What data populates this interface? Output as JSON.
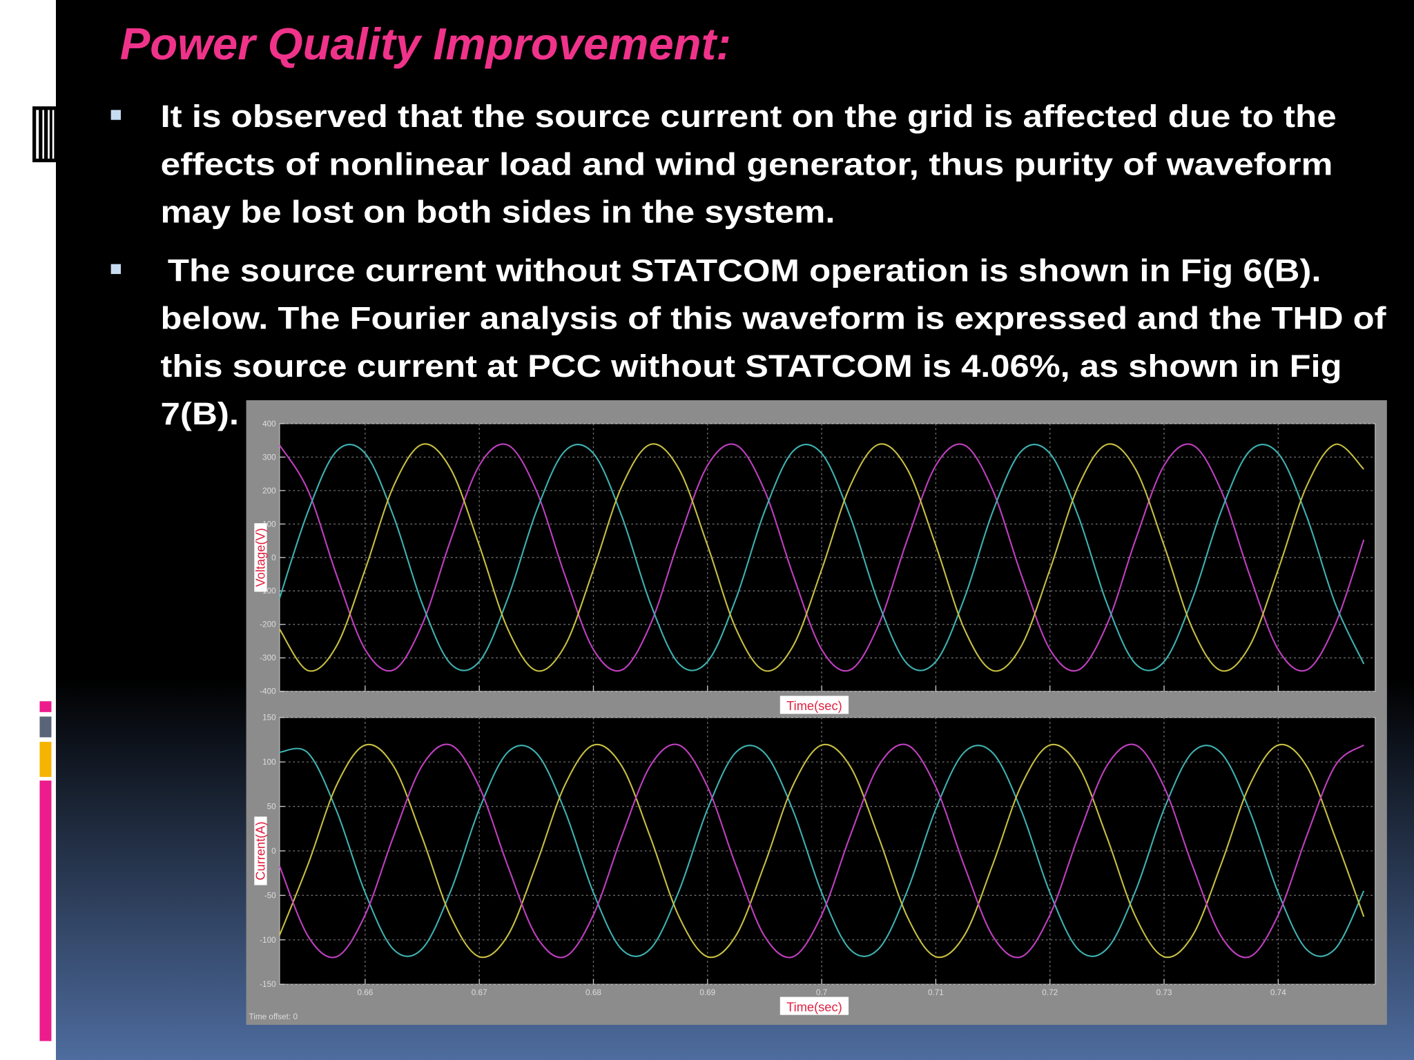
{
  "slide": {
    "title": "Power Quality Improvement:",
    "bullets": [
      {
        "lines": [
          "It is observed that the source current on the grid is affected due to the",
          "effects of nonlinear load and wind generator, thus purity of waveform",
          "may be lost on both sides in the system."
        ]
      },
      {
        "lines": [
          "The source current without STATCOM operation is shown in Fig 6(B).",
          "below. The Fourier analysis of this waveform is expressed and the THD of",
          "this source current at PCC without STATCOM is 4.06%, as shown in Fig",
          "7(B)."
        ]
      }
    ]
  },
  "chart_data": [
    {
      "type": "line",
      "y_label": "Voltage(V)",
      "x_label": "Time(sec)",
      "xlim": [
        0.6525,
        0.7485
      ],
      "ylim": [
        -400,
        400
      ],
      "yticks": [
        400,
        300,
        200,
        100,
        0,
        -100,
        -200,
        -300,
        -400
      ],
      "grid": true,
      "x": [
        0.6525,
        0.655,
        0.6575,
        0.66,
        0.6625,
        0.665,
        0.6675,
        0.67,
        0.6725,
        0.675,
        0.6775,
        0.68,
        0.6825,
        0.685,
        0.6875,
        0.69,
        0.6925,
        0.695,
        0.6975,
        0.7,
        0.7025,
        0.705,
        0.7075,
        0.71,
        0.7125,
        0.715,
        0.7175,
        0.72,
        0.7225,
        0.725,
        0.7275,
        0.73,
        0.7325,
        0.735,
        0.7375,
        0.74,
        0.7425,
        0.745,
        0.7475
      ],
      "series": [
        {
          "color": "#c040c0",
          "values": [
            336,
            200,
            -53,
            -275,
            -336,
            -200,
            53,
            275,
            336,
            200,
            -53,
            -275,
            -336,
            -200,
            53,
            275,
            336,
            200,
            -53,
            -275,
            -336,
            -200,
            53,
            275,
            336,
            200,
            -53,
            -275,
            -336,
            -200,
            53,
            275,
            336,
            200,
            -53,
            -275,
            -336,
            -200,
            53
          ]
        },
        {
          "color": "#3fb2b2",
          "values": [
            -122,
            138,
            318,
            311,
            122,
            -138,
            -318,
            -311,
            -122,
            138,
            318,
            311,
            122,
            -138,
            -318,
            -311,
            -122,
            138,
            318,
            311,
            122,
            -138,
            -318,
            -311,
            -122,
            138,
            318,
            311,
            122,
            -138,
            -318,
            -311,
            -122,
            138,
            318,
            311,
            122,
            -138,
            -318
          ]
        },
        {
          "color": "#c8c042",
          "values": [
            -214,
            -338,
            -264,
            -36,
            214,
            338,
            264,
            36,
            -214,
            -338,
            -264,
            -36,
            214,
            338,
            264,
            36,
            -214,
            -338,
            -264,
            -36,
            214,
            338,
            264,
            36,
            -214,
            -338,
            -264,
            -36,
            214,
            338,
            264,
            36,
            -214,
            -338,
            -264,
            -36,
            214,
            338,
            264
          ]
        }
      ]
    },
    {
      "type": "line",
      "y_label": "Current(A)",
      "x_label": "Time(sec)",
      "note": "Time offset:  0",
      "xlim": [
        0.6525,
        0.7485
      ],
      "ylim": [
        -150,
        150
      ],
      "yticks": [
        150,
        100,
        50,
        0,
        -50,
        -100,
        -150
      ],
      "xticks": [
        0.66,
        0.67,
        0.68,
        0.69,
        0.7,
        0.71,
        0.72,
        0.73,
        0.74
      ],
      "grid": true,
      "x": [
        0.6525,
        0.655,
        0.6575,
        0.66,
        0.6625,
        0.665,
        0.6675,
        0.67,
        0.6725,
        0.675,
        0.6775,
        0.68,
        0.6825,
        0.685,
        0.6875,
        0.69,
        0.6925,
        0.695,
        0.6975,
        0.7,
        0.7025,
        0.705,
        0.7075,
        0.71,
        0.7125,
        0.715,
        0.7175,
        0.72,
        0.7225,
        0.725,
        0.7275,
        0.73,
        0.7325,
        0.735,
        0.7375,
        0.74,
        0.7425,
        0.745,
        0.7475
      ],
      "series": [
        {
          "color": "#3fb2b2",
          "values": [
            111,
            110,
            45,
            -47,
            -111,
            -110,
            -45,
            47,
            111,
            110,
            45,
            -47,
            -111,
            -110,
            -45,
            47,
            111,
            110,
            45,
            -47,
            -111,
            -110,
            -45,
            47,
            111,
            110,
            45,
            -47,
            -111,
            -110,
            -45,
            47,
            111,
            110,
            45,
            -47,
            -111,
            -110,
            -45
          ]
        },
        {
          "color": "#c8c042",
          "values": [
            -95,
            -15,
            74,
            119,
            95,
            15,
            -74,
            -119,
            -95,
            -15,
            74,
            119,
            95,
            15,
            -74,
            -119,
            -95,
            -15,
            74,
            119,
            95,
            15,
            -74,
            -119,
            -95,
            -15,
            74,
            119,
            95,
            15,
            -74,
            -119,
            -95,
            -15,
            74,
            119,
            95,
            15,
            -74
          ]
        },
        {
          "color": "#c040c0",
          "values": [
            -17,
            -96,
            -119,
            -72,
            17,
            96,
            119,
            72,
            -17,
            -96,
            -119,
            -72,
            17,
            96,
            119,
            72,
            -17,
            -96,
            -119,
            -72,
            17,
            96,
            119,
            72,
            -17,
            -96,
            -119,
            -72,
            17,
            96,
            119,
            72,
            -17,
            -96,
            -119,
            -72,
            17,
            96,
            119
          ]
        }
      ]
    }
  ]
}
